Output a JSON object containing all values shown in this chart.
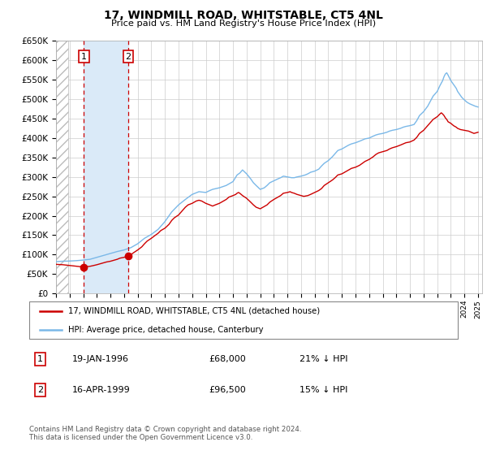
{
  "title": "17, WINDMILL ROAD, WHITSTABLE, CT5 4NL",
  "subtitle": "Price paid vs. HM Land Registry's House Price Index (HPI)",
  "legend_line1": "17, WINDMILL ROAD, WHITSTABLE, CT5 4NL (detached house)",
  "legend_line2": "HPI: Average price, detached house, Canterbury",
  "transaction1_date": "19-JAN-1996",
  "transaction1_price": 68000,
  "transaction1_label": "21% ↓ HPI",
  "transaction1_year": 1996.05,
  "transaction2_date": "16-APR-1999",
  "transaction2_price": 96500,
  "transaction2_label": "15% ↓ HPI",
  "transaction2_year": 1999.3,
  "ylim_min": 0,
  "ylim_max": 650000,
  "xlim_min": 1994.0,
  "xlim_max": 2025.3,
  "footer": "Contains HM Land Registry data © Crown copyright and database right 2024.\nThis data is licensed under the Open Government Licence v3.0.",
  "hpi_color": "#7ab8e8",
  "price_color": "#cc0000",
  "shade_color": "#daeaf8",
  "background_color": "#ffffff",
  "hpi_data": [
    [
      1994.0,
      82000
    ],
    [
      1994.5,
      83000
    ],
    [
      1995.0,
      83500
    ],
    [
      1995.5,
      84500
    ],
    [
      1996.0,
      86000
    ],
    [
      1996.5,
      88000
    ],
    [
      1997.0,
      93000
    ],
    [
      1997.5,
      98000
    ],
    [
      1998.0,
      103000
    ],
    [
      1998.5,
      108000
    ],
    [
      1999.0,
      112000
    ],
    [
      1999.5,
      118000
    ],
    [
      2000.0,
      128000
    ],
    [
      2000.5,
      142000
    ],
    [
      2001.0,
      152000
    ],
    [
      2001.5,
      165000
    ],
    [
      2002.0,
      185000
    ],
    [
      2002.5,
      210000
    ],
    [
      2003.0,
      228000
    ],
    [
      2003.5,
      242000
    ],
    [
      2004.0,
      255000
    ],
    [
      2004.5,
      262000
    ],
    [
      2005.0,
      260000
    ],
    [
      2005.3,
      265000
    ],
    [
      2005.5,
      268000
    ],
    [
      2006.0,
      272000
    ],
    [
      2006.5,
      278000
    ],
    [
      2007.0,
      288000
    ],
    [
      2007.3,
      305000
    ],
    [
      2007.5,
      310000
    ],
    [
      2007.7,
      318000
    ],
    [
      2008.0,
      308000
    ],
    [
      2008.3,
      295000
    ],
    [
      2008.5,
      285000
    ],
    [
      2008.7,
      278000
    ],
    [
      2009.0,
      268000
    ],
    [
      2009.3,
      272000
    ],
    [
      2009.5,
      278000
    ],
    [
      2009.7,
      285000
    ],
    [
      2010.0,
      290000
    ],
    [
      2010.3,
      295000
    ],
    [
      2010.5,
      298000
    ],
    [
      2010.7,
      302000
    ],
    [
      2011.0,
      300000
    ],
    [
      2011.3,
      298000
    ],
    [
      2011.5,
      298000
    ],
    [
      2011.7,
      300000
    ],
    [
      2012.0,
      302000
    ],
    [
      2012.3,
      305000
    ],
    [
      2012.5,
      308000
    ],
    [
      2012.7,
      312000
    ],
    [
      2013.0,
      315000
    ],
    [
      2013.3,
      320000
    ],
    [
      2013.5,
      328000
    ],
    [
      2013.7,
      335000
    ],
    [
      2014.0,
      342000
    ],
    [
      2014.3,
      352000
    ],
    [
      2014.5,
      360000
    ],
    [
      2014.7,
      368000
    ],
    [
      2015.0,
      372000
    ],
    [
      2015.3,
      378000
    ],
    [
      2015.5,
      382000
    ],
    [
      2015.7,
      385000
    ],
    [
      2016.0,
      388000
    ],
    [
      2016.3,
      392000
    ],
    [
      2016.5,
      395000
    ],
    [
      2016.7,
      398000
    ],
    [
      2017.0,
      400000
    ],
    [
      2017.3,
      405000
    ],
    [
      2017.5,
      408000
    ],
    [
      2017.7,
      410000
    ],
    [
      2018.0,
      412000
    ],
    [
      2018.3,
      415000
    ],
    [
      2018.5,
      418000
    ],
    [
      2018.7,
      420000
    ],
    [
      2019.0,
      422000
    ],
    [
      2019.3,
      425000
    ],
    [
      2019.5,
      428000
    ],
    [
      2019.7,
      430000
    ],
    [
      2020.0,
      432000
    ],
    [
      2020.3,
      435000
    ],
    [
      2020.5,
      445000
    ],
    [
      2020.7,
      458000
    ],
    [
      2021.0,
      468000
    ],
    [
      2021.3,
      482000
    ],
    [
      2021.5,
      495000
    ],
    [
      2021.7,
      508000
    ],
    [
      2022.0,
      520000
    ],
    [
      2022.2,
      535000
    ],
    [
      2022.4,
      548000
    ],
    [
      2022.5,
      558000
    ],
    [
      2022.6,
      565000
    ],
    [
      2022.7,
      568000
    ],
    [
      2022.8,
      562000
    ],
    [
      2023.0,
      548000
    ],
    [
      2023.2,
      538000
    ],
    [
      2023.4,
      528000
    ],
    [
      2023.5,
      520000
    ],
    [
      2023.6,
      515000
    ],
    [
      2023.7,
      510000
    ],
    [
      2023.8,
      505000
    ],
    [
      2024.0,
      498000
    ],
    [
      2024.2,
      492000
    ],
    [
      2024.4,
      488000
    ],
    [
      2024.6,
      485000
    ],
    [
      2024.8,
      482000
    ],
    [
      2025.0,
      480000
    ]
  ],
  "price_data": [
    [
      1994.0,
      75000
    ],
    [
      1994.5,
      74000
    ],
    [
      1995.0,
      72000
    ],
    [
      1995.5,
      70000
    ],
    [
      1996.05,
      68000
    ],
    [
      1996.3,
      69000
    ],
    [
      1996.5,
      70000
    ],
    [
      1996.7,
      71500
    ],
    [
      1997.0,
      74000
    ],
    [
      1997.3,
      77000
    ],
    [
      1997.5,
      79000
    ],
    [
      1997.7,
      81000
    ],
    [
      1998.0,
      83000
    ],
    [
      1998.3,
      86000
    ],
    [
      1998.5,
      88000
    ],
    [
      1998.7,
      91000
    ],
    [
      1999.0,
      93000
    ],
    [
      1999.29,
      96500
    ],
    [
      1999.5,
      100000
    ],
    [
      1999.7,
      105000
    ],
    [
      2000.0,
      112000
    ],
    [
      2000.3,
      120000
    ],
    [
      2000.5,
      128000
    ],
    [
      2000.7,
      135000
    ],
    [
      2001.0,
      142000
    ],
    [
      2001.3,
      150000
    ],
    [
      2001.5,
      155000
    ],
    [
      2001.7,
      162000
    ],
    [
      2002.0,
      168000
    ],
    [
      2002.3,
      178000
    ],
    [
      2002.5,
      188000
    ],
    [
      2002.7,
      195000
    ],
    [
      2003.0,
      202000
    ],
    [
      2003.2,
      210000
    ],
    [
      2003.4,
      218000
    ],
    [
      2003.5,
      222000
    ],
    [
      2003.6,
      225000
    ],
    [
      2003.7,
      228000
    ],
    [
      2004.0,
      232000
    ],
    [
      2004.3,
      238000
    ],
    [
      2004.5,
      240000
    ],
    [
      2004.7,
      238000
    ],
    [
      2005.0,
      232000
    ],
    [
      2005.3,
      228000
    ],
    [
      2005.5,
      225000
    ],
    [
      2005.7,
      228000
    ],
    [
      2006.0,
      232000
    ],
    [
      2006.3,
      238000
    ],
    [
      2006.5,
      242000
    ],
    [
      2006.7,
      248000
    ],
    [
      2007.0,
      252000
    ],
    [
      2007.2,
      255000
    ],
    [
      2007.3,
      258000
    ],
    [
      2007.4,
      260000
    ],
    [
      2007.5,
      258000
    ],
    [
      2007.7,
      252000
    ],
    [
      2008.0,
      245000
    ],
    [
      2008.3,
      235000
    ],
    [
      2008.5,
      228000
    ],
    [
      2008.7,
      222000
    ],
    [
      2009.0,
      218000
    ],
    [
      2009.2,
      222000
    ],
    [
      2009.5,
      228000
    ],
    [
      2009.7,
      235000
    ],
    [
      2010.0,
      242000
    ],
    [
      2010.3,
      248000
    ],
    [
      2010.5,
      252000
    ],
    [
      2010.7,
      258000
    ],
    [
      2011.0,
      260000
    ],
    [
      2011.2,
      262000
    ],
    [
      2011.3,
      260000
    ],
    [
      2011.5,
      258000
    ],
    [
      2011.7,
      255000
    ],
    [
      2012.0,
      252000
    ],
    [
      2012.2,
      250000
    ],
    [
      2012.5,
      252000
    ],
    [
      2012.7,
      255000
    ],
    [
      2013.0,
      260000
    ],
    [
      2013.3,
      265000
    ],
    [
      2013.5,
      270000
    ],
    [
      2013.7,
      278000
    ],
    [
      2014.0,
      285000
    ],
    [
      2014.3,
      292000
    ],
    [
      2014.5,
      298000
    ],
    [
      2014.7,
      305000
    ],
    [
      2015.0,
      308000
    ],
    [
      2015.2,
      312000
    ],
    [
      2015.5,
      318000
    ],
    [
      2015.7,
      322000
    ],
    [
      2016.0,
      325000
    ],
    [
      2016.3,
      330000
    ],
    [
      2016.5,
      335000
    ],
    [
      2016.7,
      340000
    ],
    [
      2017.0,
      345000
    ],
    [
      2017.3,
      352000
    ],
    [
      2017.5,
      358000
    ],
    [
      2017.7,
      362000
    ],
    [
      2018.0,
      365000
    ],
    [
      2018.3,
      368000
    ],
    [
      2018.5,
      372000
    ],
    [
      2018.7,
      375000
    ],
    [
      2019.0,
      378000
    ],
    [
      2019.3,
      382000
    ],
    [
      2019.5,
      385000
    ],
    [
      2019.7,
      388000
    ],
    [
      2020.0,
      390000
    ],
    [
      2020.3,
      395000
    ],
    [
      2020.5,
      402000
    ],
    [
      2020.7,
      412000
    ],
    [
      2021.0,
      420000
    ],
    [
      2021.3,
      432000
    ],
    [
      2021.5,
      440000
    ],
    [
      2021.7,
      448000
    ],
    [
      2022.0,
      455000
    ],
    [
      2022.2,
      462000
    ],
    [
      2022.3,
      465000
    ],
    [
      2022.4,
      462000
    ],
    [
      2022.5,
      458000
    ],
    [
      2022.6,
      452000
    ],
    [
      2022.7,
      448000
    ],
    [
      2022.8,
      442000
    ],
    [
      2023.0,
      438000
    ],
    [
      2023.2,
      432000
    ],
    [
      2023.4,
      428000
    ],
    [
      2023.5,
      425000
    ],
    [
      2023.7,
      422000
    ],
    [
      2024.0,
      420000
    ],
    [
      2024.3,
      418000
    ],
    [
      2024.5,
      415000
    ],
    [
      2024.7,
      412000
    ],
    [
      2025.0,
      415000
    ]
  ]
}
